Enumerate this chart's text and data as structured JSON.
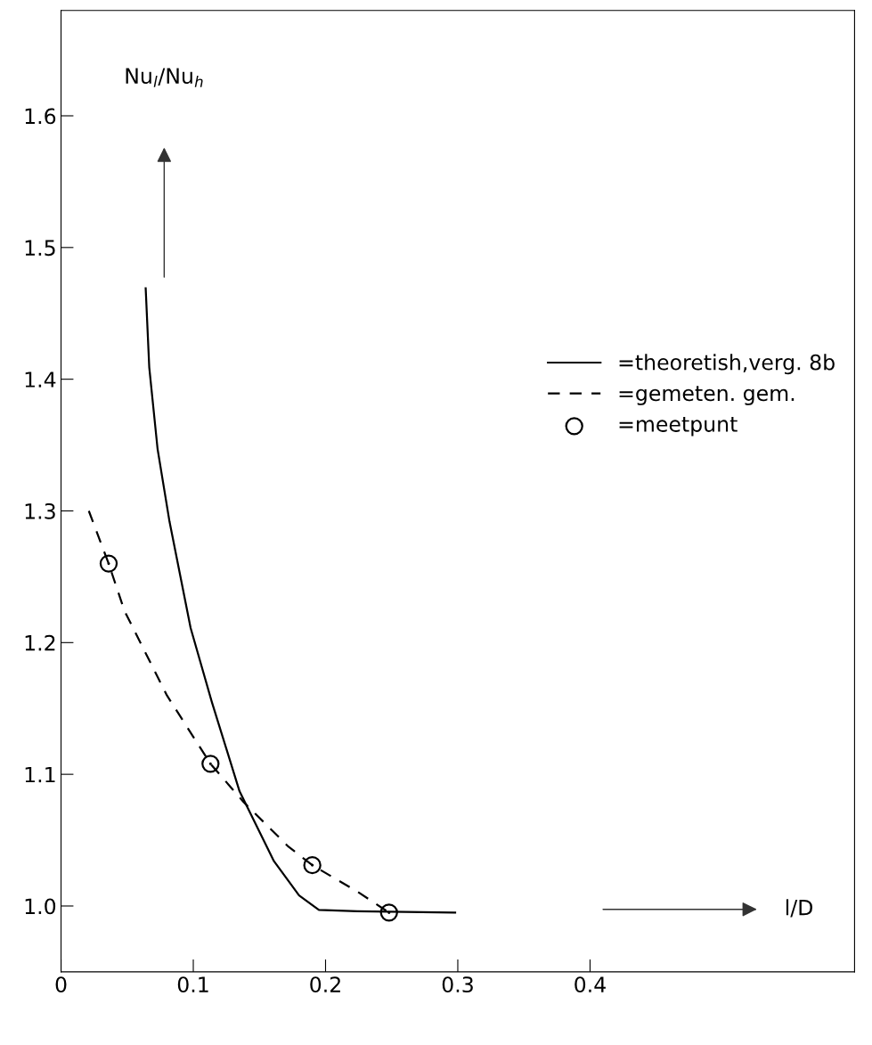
{
  "chart_data": {
    "type": "line",
    "xlabel": "l/D",
    "ylabel": "Nu$_{l}$/Nu$_{h}$",
    "xlim": [
      0,
      0.6
    ],
    "ylim": [
      0.95,
      1.68
    ],
    "xticks": [
      {
        "value": 0,
        "label": "0"
      },
      0.1,
      0.2,
      0.3,
      0.4
    ],
    "yticks": [
      {
        "value": 1.0,
        "label": "1.0"
      },
      {
        "value": 1.1,
        "label": "1.1"
      },
      {
        "value": 1.2,
        "label": "1.2"
      },
      {
        "value": 1.3,
        "label": "1.3"
      },
      {
        "value": 1.4,
        "label": "1.4"
      },
      {
        "value": 1.5,
        "label": "1.5"
      },
      {
        "value": 1.6,
        "label": "1.6"
      }
    ],
    "grid": false,
    "legend": "right",
    "series": [
      {
        "name": "=theoretish,verg. 8b",
        "color": "#000000",
        "line_style": "solid",
        "marker": "none",
        "x": [
          0.064,
          0.0667,
          0.073,
          0.082,
          0.098,
          0.114,
          0.135,
          0.161,
          0.18,
          0.195,
          0.224,
          0.298
        ],
        "values": [
          1.469,
          1.409,
          1.347,
          1.292,
          1.211,
          1.155,
          1.087,
          1.034,
          1.008,
          0.997,
          0.996,
          0.995
        ]
      },
      {
        "name": "=gemeten. gem.",
        "color": "#000000",
        "line_style": "dashed",
        "marker": "none",
        "x": [
          0.021,
          0.036,
          0.048,
          0.08,
          0.113,
          0.138,
          0.172,
          0.19,
          0.224,
          0.248
        ],
        "values": [
          1.3,
          1.26,
          1.224,
          1.16,
          1.108,
          1.079,
          1.045,
          1.031,
          1.011,
          0.995
        ]
      },
      {
        "name": "=meetpunt",
        "type": "scatter",
        "color": "#000000",
        "marker": "circle",
        "x": [
          0.036,
          0.113,
          0.19,
          0.248
        ],
        "values": [
          1.26,
          1.108,
          1.031,
          0.995
        ]
      }
    ]
  }
}
